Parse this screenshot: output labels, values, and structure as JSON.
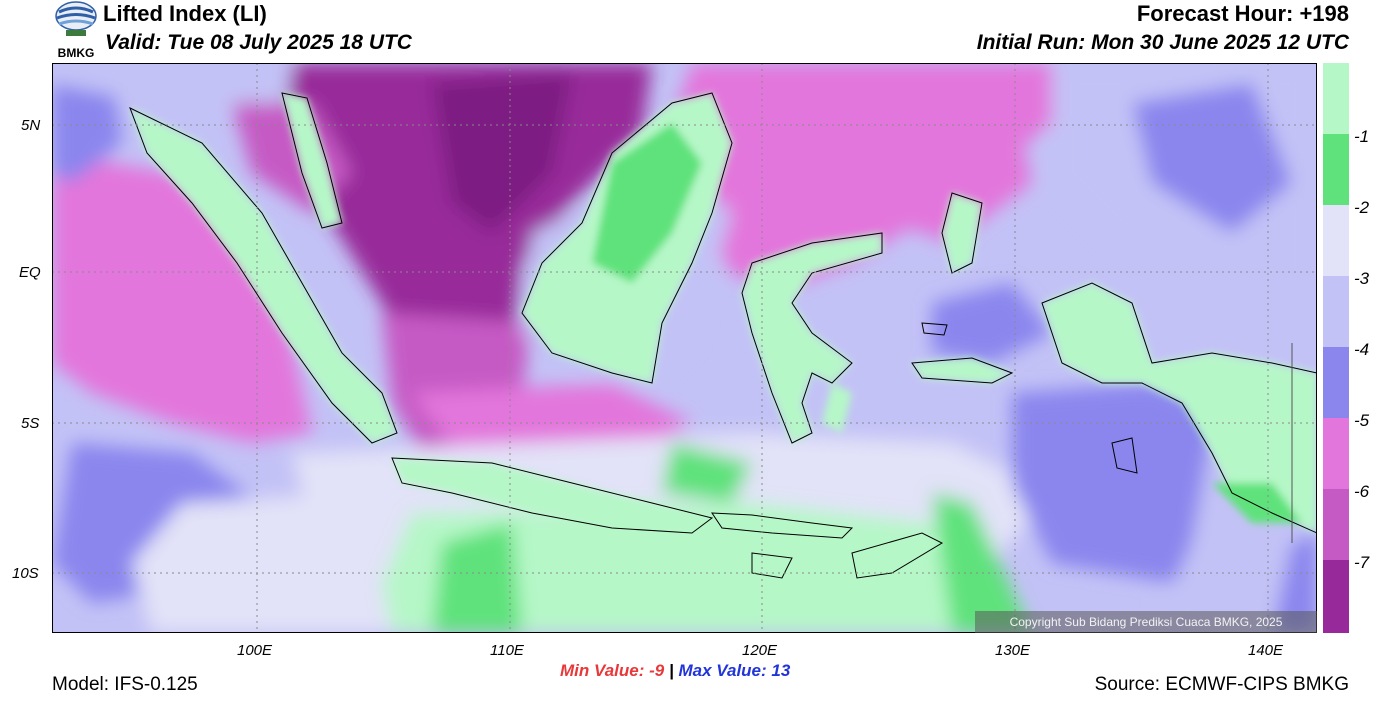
{
  "header": {
    "title": "Lifted Index (LI)",
    "valid": "Valid: Tue 08 July 2025 18 UTC",
    "forecast_hour": "Forecast Hour: +198",
    "initial_run": "Initial Run: Mon 30 June 2025 12 UTC"
  },
  "logo": {
    "text": "BMKG"
  },
  "axes": {
    "lat_labels": [
      "5N",
      "EQ",
      "5S",
      "10S"
    ],
    "lon_labels": [
      "100E",
      "110E",
      "120E",
      "130E",
      "140E"
    ]
  },
  "colorbar": {
    "labels": [
      "-1",
      "-2",
      "-3",
      "-4",
      "-5",
      "-6",
      "-7"
    ],
    "colors": [
      "#b6f7c8",
      "#5fe27c",
      "#e2e2f8",
      "#c3c2f6",
      "#8a86ee",
      "#e376dc",
      "#c65ac5",
      "#98299a"
    ]
  },
  "stats": {
    "min_label": "Min Value:",
    "min_value": "-9",
    "separator": "|",
    "max_label": "Max Value:",
    "max_value": "13"
  },
  "footer": {
    "model": "Model: IFS-0.125",
    "source": "Source: ECMWF-CIPS BMKG",
    "copyright": "Copyright Sub Bidang Prediksi Cuaca BMKG, 2025"
  }
}
